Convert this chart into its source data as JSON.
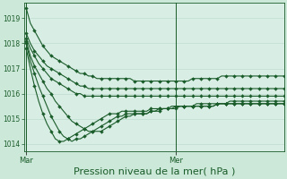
{
  "bg_color": "#cce8d8",
  "plot_bg_color": "#d8ede4",
  "grid_color": "#b8d8cc",
  "line_color": "#1a5c2a",
  "xlabel": "Pression niveau de la mer( hPa )",
  "xlabel_fontsize": 8,
  "yticks": [
    1014,
    1015,
    1016,
    1017,
    1018,
    1019
  ],
  "ylim": [
    1013.7,
    1019.6
  ],
  "xtick_labels": [
    "Mar",
    "Mer"
  ],
  "xtick_pos": [
    0,
    36
  ],
  "xlim": [
    -0.5,
    62
  ],
  "vline_positions": [
    0,
    36
  ],
  "series": [
    [
      1019.4,
      1018.8,
      1018.5,
      1018.2,
      1017.9,
      1017.7,
      1017.5,
      1017.4,
      1017.3,
      1017.2,
      1017.1,
      1017.0,
      1016.9,
      1016.8,
      1016.8,
      1016.7,
      1016.7,
      1016.6,
      1016.6,
      1016.6,
      1016.6,
      1016.6,
      1016.6,
      1016.6,
      1016.6,
      1016.6,
      1016.5,
      1016.5,
      1016.5,
      1016.5,
      1016.5,
      1016.5,
      1016.5,
      1016.5,
      1016.5,
      1016.5,
      1016.5,
      1016.5,
      1016.5,
      1016.5,
      1016.6,
      1016.6,
      1016.6,
      1016.6,
      1016.6,
      1016.6,
      1016.6,
      1016.7,
      1016.7,
      1016.7,
      1016.7,
      1016.7,
      1016.7,
      1016.7,
      1016.7,
      1016.7,
      1016.7,
      1016.7,
      1016.7,
      1016.7,
      1016.7,
      1016.7,
      1016.7
    ],
    [
      1018.4,
      1018.0,
      1017.7,
      1017.5,
      1017.3,
      1017.1,
      1017.0,
      1016.9,
      1016.8,
      1016.7,
      1016.6,
      1016.5,
      1016.4,
      1016.3,
      1016.3,
      1016.2,
      1016.2,
      1016.2,
      1016.2,
      1016.2,
      1016.2,
      1016.2,
      1016.2,
      1016.2,
      1016.2,
      1016.2,
      1016.2,
      1016.2,
      1016.2,
      1016.2,
      1016.2,
      1016.2,
      1016.2,
      1016.2,
      1016.2,
      1016.2,
      1016.2,
      1016.2,
      1016.2,
      1016.2,
      1016.2,
      1016.2,
      1016.2,
      1016.2,
      1016.2,
      1016.2,
      1016.2,
      1016.2,
      1016.2,
      1016.2,
      1016.2,
      1016.2,
      1016.2,
      1016.2,
      1016.2,
      1016.2,
      1016.2,
      1016.2,
      1016.2,
      1016.2,
      1016.2,
      1016.2,
      1016.2
    ],
    [
      1018.2,
      1017.8,
      1017.5,
      1017.2,
      1017.0,
      1016.8,
      1016.6,
      1016.5,
      1016.4,
      1016.3,
      1016.2,
      1016.1,
      1016.0,
      1016.0,
      1015.9,
      1015.9,
      1015.9,
      1015.9,
      1015.9,
      1015.9,
      1015.9,
      1015.9,
      1015.9,
      1015.9,
      1015.9,
      1015.9,
      1015.9,
      1015.9,
      1015.9,
      1015.9,
      1015.9,
      1015.9,
      1015.9,
      1015.9,
      1015.9,
      1015.9,
      1015.9,
      1015.9,
      1015.9,
      1015.9,
      1015.9,
      1015.9,
      1015.9,
      1015.9,
      1015.9,
      1015.9,
      1015.9,
      1015.9,
      1015.9,
      1015.9,
      1015.9,
      1015.9,
      1015.9,
      1015.9,
      1015.9,
      1015.9,
      1015.9,
      1015.9,
      1015.9,
      1015.9,
      1015.9,
      1015.9,
      1015.9
    ],
    [
      1018.1,
      1017.5,
      1017.1,
      1016.8,
      1016.5,
      1016.2,
      1016.0,
      1015.7,
      1015.5,
      1015.3,
      1015.1,
      1014.9,
      1014.8,
      1014.7,
      1014.6,
      1014.5,
      1014.5,
      1014.5,
      1014.5,
      1014.6,
      1014.7,
      1014.8,
      1014.9,
      1015.0,
      1015.1,
      1015.1,
      1015.2,
      1015.2,
      1015.2,
      1015.2,
      1015.3,
      1015.3,
      1015.4,
      1015.4,
      1015.4,
      1015.4,
      1015.5,
      1015.5,
      1015.5,
      1015.5,
      1015.5,
      1015.6,
      1015.6,
      1015.6,
      1015.6,
      1015.6,
      1015.6,
      1015.6,
      1015.6,
      1015.7,
      1015.7,
      1015.7,
      1015.7,
      1015.7,
      1015.7,
      1015.7,
      1015.7,
      1015.7,
      1015.7,
      1015.7,
      1015.7,
      1015.7,
      1015.7
    ],
    [
      1018.0,
      1017.3,
      1016.8,
      1016.3,
      1015.9,
      1015.5,
      1015.1,
      1014.8,
      1014.5,
      1014.3,
      1014.2,
      1014.1,
      1014.2,
      1014.2,
      1014.3,
      1014.4,
      1014.5,
      1014.6,
      1014.7,
      1014.8,
      1014.9,
      1015.0,
      1015.1,
      1015.1,
      1015.2,
      1015.2,
      1015.2,
      1015.2,
      1015.2,
      1015.2,
      1015.3,
      1015.3,
      1015.3,
      1015.4,
      1015.4,
      1015.4,
      1015.4,
      1015.5,
      1015.5,
      1015.5,
      1015.5,
      1015.5,
      1015.5,
      1015.5,
      1015.5,
      1015.5,
      1015.6,
      1015.6,
      1015.6,
      1015.6,
      1015.6,
      1015.6,
      1015.6,
      1015.6,
      1015.6,
      1015.6,
      1015.6,
      1015.6,
      1015.6,
      1015.6,
      1015.6,
      1015.6,
      1015.6
    ],
    [
      1017.8,
      1017.0,
      1016.3,
      1015.7,
      1015.2,
      1014.8,
      1014.5,
      1014.2,
      1014.1,
      1014.1,
      1014.2,
      1014.3,
      1014.4,
      1014.5,
      1014.6,
      1014.7,
      1014.8,
      1014.9,
      1015.0,
      1015.1,
      1015.2,
      1015.2,
      1015.2,
      1015.3,
      1015.3,
      1015.3,
      1015.3,
      1015.3,
      1015.3,
      1015.3,
      1015.4,
      1015.4,
      1015.4,
      1015.4,
      1015.4,
      1015.5,
      1015.5,
      1015.5,
      1015.5,
      1015.5,
      1015.5,
      1015.5,
      1015.5,
      1015.5,
      1015.5,
      1015.5,
      1015.6,
      1015.6,
      1015.6,
      1015.6,
      1015.6,
      1015.6,
      1015.6,
      1015.6,
      1015.6,
      1015.6,
      1015.6,
      1015.6,
      1015.6,
      1015.6,
      1015.6,
      1015.6,
      1015.6
    ]
  ],
  "marker_every": 2,
  "linewidth": 0.8,
  "markersize": 2.0
}
